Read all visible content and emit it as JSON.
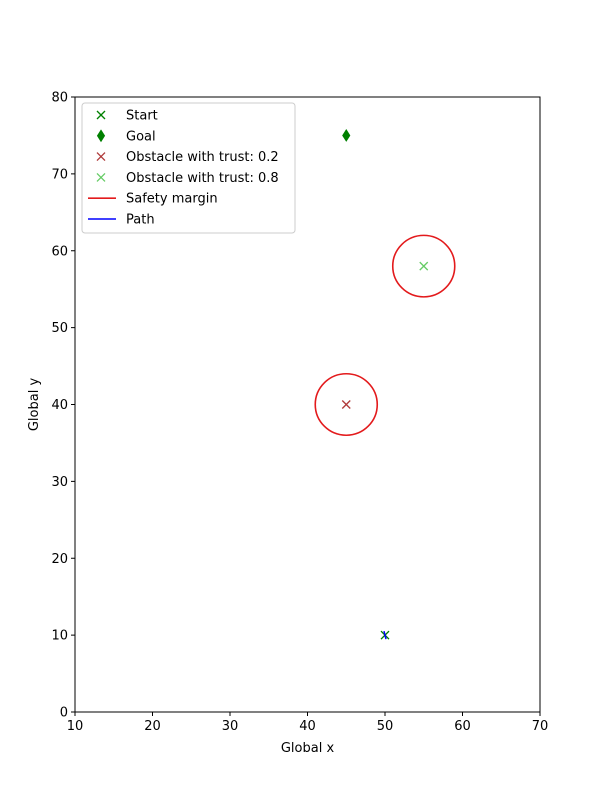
{
  "chart_data": {
    "type": "scatter",
    "title": "",
    "xlabel": "Global x",
    "ylabel": "Global y",
    "xlim": [
      10,
      70
    ],
    "ylim": [
      0,
      80
    ],
    "x_ticks": [
      10,
      20,
      30,
      40,
      50,
      60,
      70
    ],
    "y_ticks": [
      0,
      10,
      20,
      30,
      40,
      50,
      60,
      70,
      80
    ],
    "grid": false,
    "legend_position": "top-left",
    "series": [
      {
        "name": "Start",
        "marker": "x",
        "color": "#008000",
        "points": [
          [
            50,
            10
          ]
        ]
      },
      {
        "name": "Goal",
        "marker": "thin-diamond",
        "color": "#008000",
        "points": [
          [
            45,
            75
          ]
        ]
      },
      {
        "name": "Obstacle with trust: 0.2",
        "marker": "x",
        "color": "#b03a3a",
        "points": [
          [
            45,
            40
          ]
        ]
      },
      {
        "name": "Obstacle with trust: 0.8",
        "marker": "x",
        "color": "#66cc66",
        "points": [
          [
            55,
            58
          ]
        ]
      },
      {
        "name": "Safety margin",
        "marker": "circle-outline",
        "color": "#e31a1c",
        "circles": [
          {
            "center": [
              45,
              40
            ],
            "radius": 4
          },
          {
            "center": [
              55,
              58
            ],
            "radius": 4
          }
        ]
      },
      {
        "name": "Path",
        "marker": "line",
        "color": "#0000ff",
        "points": [
          [
            50,
            10
          ]
        ]
      }
    ]
  }
}
